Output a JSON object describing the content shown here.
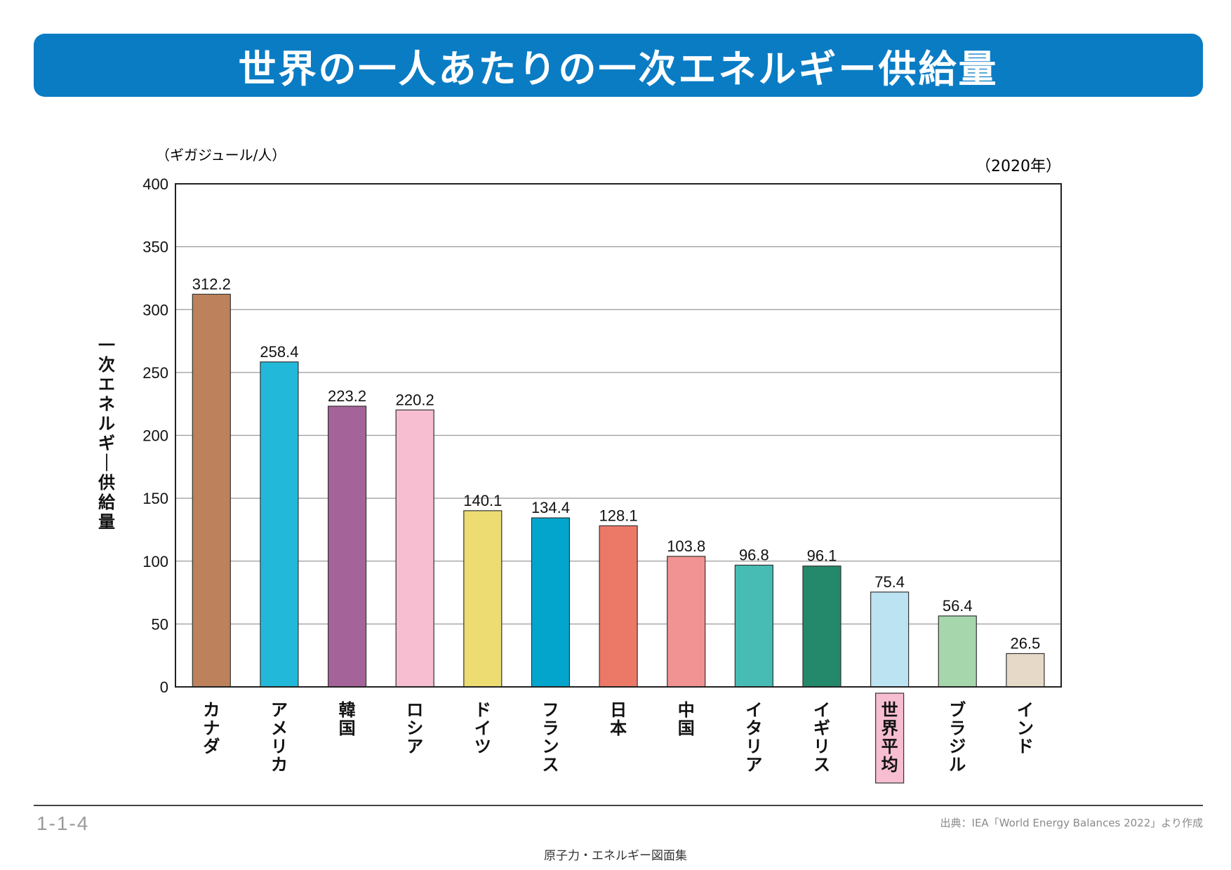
{
  "title": "世界の一人あたりの一次エネルギー供給量",
  "chart_data": {
    "type": "bar",
    "unit_label": "（ギガジュール/人）",
    "year_label": "（2020年）",
    "ylabel": "一次エネルギー供給量",
    "ylim": [
      0,
      400
    ],
    "yticks": [
      0,
      50,
      100,
      150,
      200,
      250,
      300,
      350,
      400
    ],
    "grid": true,
    "categories": [
      "カナダ",
      "アメリカ",
      "韓国",
      "ロシア",
      "ドイツ",
      "フランス",
      "日本",
      "中国",
      "イタリア",
      "イギリス",
      "世界平均",
      "ブラジル",
      "インド"
    ],
    "values": [
      312.2,
      258.4,
      223.2,
      220.2,
      140.1,
      134.4,
      128.1,
      103.8,
      96.8,
      96.1,
      75.4,
      56.4,
      26.5
    ],
    "value_labels": [
      "312.2",
      "258.4",
      "223.2",
      "220.2",
      "140.1",
      "134.4",
      "128.1",
      "103.8",
      "96.8",
      "96.1",
      "75.4",
      "56.4",
      "26.5"
    ],
    "colors": [
      "#bd825b",
      "#22b8d9",
      "#a46399",
      "#f6bed0",
      "#ecdc72",
      "#04a5cc",
      "#ec7868",
      "#f09392",
      "#47bcb4",
      "#23896a",
      "#bce3f2",
      "#a6d6ab",
      "#e6d9c7"
    ],
    "highlight_category": "世界平均",
    "highlight_color": "#f6bed0"
  },
  "footer": {
    "page_number": "1-1-4",
    "source": "出典：IEA「World Energy Balances 2022」より作成",
    "booklet": "原子力・エネルギー図面集"
  }
}
